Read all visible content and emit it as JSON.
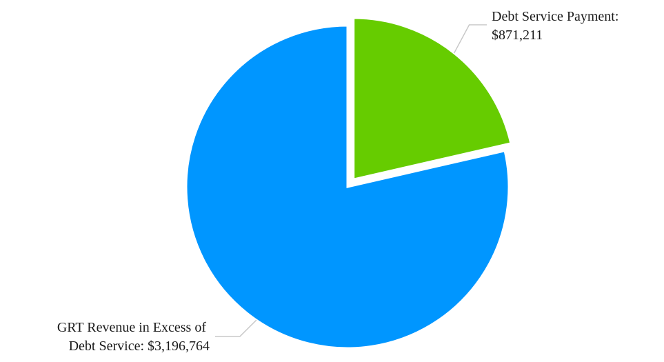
{
  "chart_data": {
    "type": "pie",
    "title": "",
    "slices": [
      {
        "name": "Debt Service Payment",
        "value": 871211,
        "label_lines": [
          "Debt Service Payment:",
          "$871,211"
        ],
        "color": "#66cc00",
        "exploded": true
      },
      {
        "name": "GRT Revenue in Excess of Debt Service",
        "value": 3196764,
        "label_lines": [
          "GRT Revenue in Excess of",
          "Debt Service: $3,196,764"
        ],
        "color": "#0096ff",
        "exploded": false
      }
    ],
    "start_angle": "12 o'clock",
    "direction": "clockwise",
    "legend": "none",
    "leader_line_color": "#c8c8c8"
  }
}
